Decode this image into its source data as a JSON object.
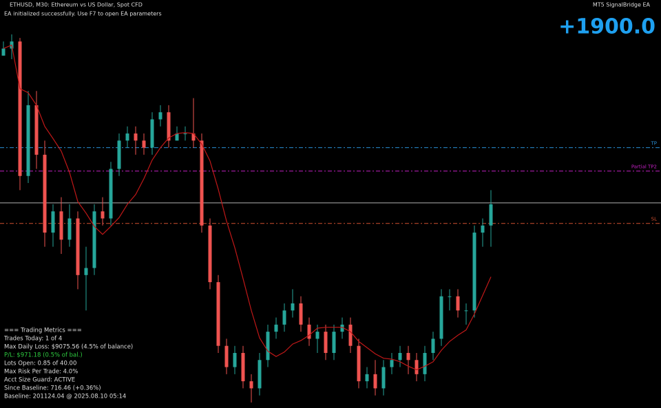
{
  "header": {
    "symbol": "ETHUSD, M30: Ethereum vs US Dollar, Spot CFD",
    "status": "EA initialized successfully. Use F7 to open EA parameters",
    "ea_name": "MT5 SignalBridge EA",
    "score": "+1900.0"
  },
  "chart_data": {
    "type": "candlestick",
    "candles": [
      [
        520,
        540,
        520,
        530
      ],
      [
        530,
        550,
        515,
        540
      ],
      [
        540,
        545,
        330,
        350
      ],
      [
        350,
        470,
        340,
        450
      ],
      [
        450,
        470,
        360,
        380
      ],
      [
        380,
        400,
        250,
        270
      ],
      [
        270,
        310,
        250,
        300
      ],
      [
        300,
        320,
        240,
        260
      ],
      [
        260,
        310,
        250,
        290
      ],
      [
        290,
        300,
        190,
        210
      ],
      [
        210,
        250,
        160,
        220
      ],
      [
        220,
        310,
        210,
        300
      ],
      [
        300,
        320,
        280,
        290
      ],
      [
        290,
        370,
        280,
        360
      ],
      [
        360,
        410,
        350,
        400
      ],
      [
        400,
        420,
        390,
        410
      ],
      [
        410,
        420,
        380,
        400
      ],
      [
        400,
        410,
        380,
        390
      ],
      [
        390,
        440,
        380,
        430
      ],
      [
        430,
        450,
        420,
        440
      ],
      [
        440,
        450,
        390,
        400
      ],
      [
        400,
        420,
        400,
        410
      ],
      [
        410,
        420,
        400,
        410
      ],
      [
        410,
        460,
        390,
        400
      ],
      [
        400,
        410,
        270,
        280
      ],
      [
        280,
        290,
        190,
        200
      ],
      [
        200,
        210,
        100,
        110
      ],
      [
        110,
        120,
        70,
        80
      ],
      [
        80,
        110,
        70,
        100
      ],
      [
        100,
        110,
        50,
        60
      ],
      [
        60,
        70,
        30,
        50
      ],
      [
        50,
        100,
        40,
        90
      ],
      [
        90,
        140,
        80,
        130
      ],
      [
        130,
        150,
        120,
        140
      ],
      [
        140,
        170,
        130,
        160
      ],
      [
        160,
        190,
        150,
        170
      ],
      [
        170,
        180,
        130,
        140
      ],
      [
        140,
        150,
        110,
        120
      ],
      [
        120,
        140,
        100,
        130
      ],
      [
        130,
        140,
        90,
        100
      ],
      [
        100,
        140,
        90,
        130
      ],
      [
        130,
        150,
        120,
        140
      ],
      [
        140,
        150,
        100,
        110
      ],
      [
        110,
        120,
        50,
        60
      ],
      [
        60,
        80,
        50,
        70
      ],
      [
        70,
        90,
        40,
        50
      ],
      [
        50,
        90,
        40,
        80
      ],
      [
        80,
        100,
        70,
        90
      ],
      [
        90,
        110,
        80,
        100
      ],
      [
        100,
        110,
        70,
        90
      ],
      [
        90,
        100,
        60,
        70
      ],
      [
        70,
        110,
        60,
        100
      ],
      [
        100,
        130,
        90,
        120
      ],
      [
        120,
        190,
        110,
        180
      ],
      [
        180,
        190,
        160,
        180
      ],
      [
        180,
        190,
        150,
        160
      ],
      [
        160,
        170,
        140,
        160
      ],
      [
        160,
        280,
        150,
        270
      ],
      [
        270,
        290,
        250,
        280
      ],
      [
        280,
        330,
        250,
        310
      ]
    ],
    "levels": [
      {
        "name": "TP",
        "value": 390,
        "color": "#2a8fd6"
      },
      {
        "name": "Partial TP2",
        "value": 357,
        "color": "#c020c0"
      },
      {
        "value": 312,
        "color": "#b0b0b0"
      },
      {
        "name": "SL",
        "value": 283,
        "color": "#d05030"
      }
    ]
  },
  "metrics": [
    "=== Trading Metrics ===",
    "Trades Today: 1 of 4",
    "Max Daily Loss: $9075.56 (4.5% of balance)",
    "P/L: $971.18 (0.5% of bal.)",
    "Lots Open: 0.85 of 40.00",
    "Max Risk Per Trade: 4.0%",
    "Acct Size Guard: ACTIVE",
    "Since Baseline: 716.46 (+0.36%)",
    "Baseline: 201124.04 @ 2025.08.10 05:14"
  ]
}
